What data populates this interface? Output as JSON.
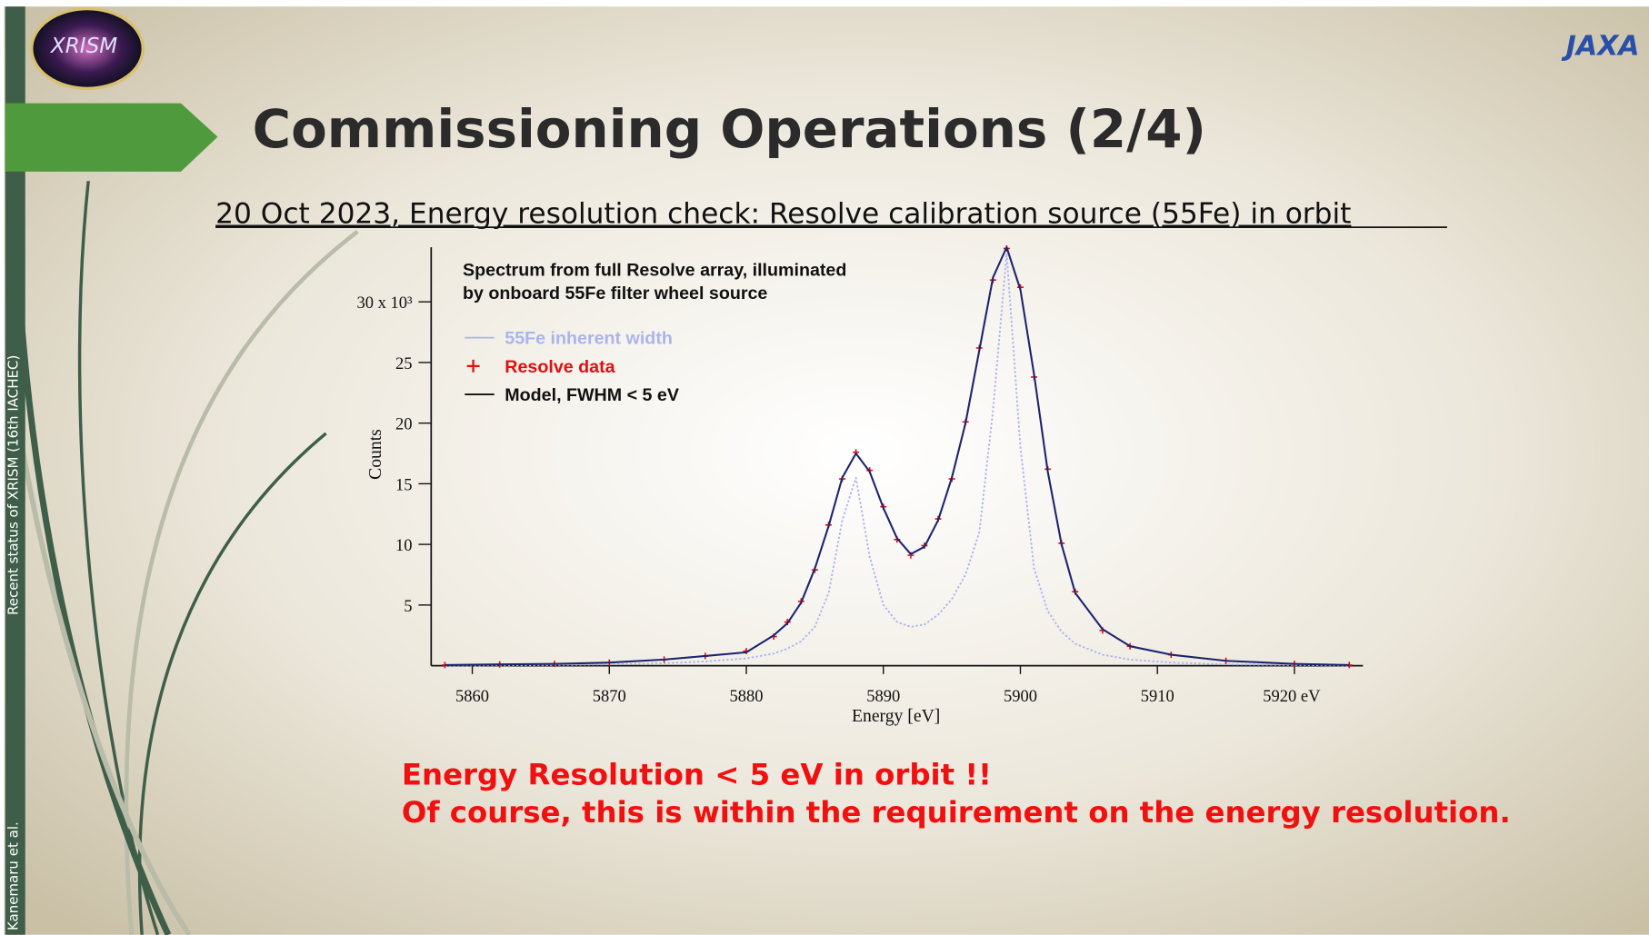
{
  "slide": {
    "logo": "XRISM",
    "agency": "JAXA",
    "sidebar_top": "Recent status of XRISM (16th IACHEC)",
    "sidebar_bottom": "Kanemaru et al.",
    "title": "Commissioning Operations (2/4)",
    "subtitle": "20 Oct 2023, Energy resolution check: Resolve calibration source (55Fe) in orbit",
    "notes": [
      "Energy Resolution < 5 eV in orbit !!",
      "Of course, this is within the requirement on the energy resolution."
    ]
  },
  "chart_data": {
    "type": "line",
    "title_lines": [
      "Spectrum from full Resolve array, illuminated",
      "by onboard 55Fe filter wheel source"
    ],
    "x_label": "Energy [eV]",
    "y_label": "Counts",
    "xlim": [
      5857,
      5925
    ],
    "ylim": [
      0,
      34.5
    ],
    "xticks": [
      5860,
      5870,
      5880,
      5890,
      5900,
      5910,
      {
        "value": 5920,
        "label": "5920 eV"
      }
    ],
    "yticks": [
      5,
      10,
      15,
      20,
      25,
      {
        "value": 30,
        "label": "30 x 10³"
      }
    ],
    "x": [
      5858,
      5862,
      5866,
      5870,
      5874,
      5877,
      5880,
      5882,
      5883,
      5884,
      5885,
      5886,
      5887,
      5888,
      5889,
      5890,
      5891,
      5892,
      5893,
      5894,
      5895,
      5896,
      5897,
      5898,
      5899,
      5900,
      5901,
      5902,
      5903,
      5904,
      5906,
      5908,
      5911,
      5915,
      5920,
      5924
    ],
    "series": [
      {
        "name": "55Fe inherent width",
        "color": "#aab4ee",
        "style": "dotted",
        "values": [
          0.02,
          0.03,
          0.05,
          0.1,
          0.2,
          0.35,
          0.6,
          1.0,
          1.4,
          2.0,
          3.2,
          6,
          12,
          15.5,
          9,
          5,
          3.6,
          3.2,
          3.4,
          4.2,
          5.5,
          7.5,
          11,
          21,
          34,
          18,
          8,
          4.5,
          2.8,
          1.8,
          0.9,
          0.5,
          0.25,
          0.1,
          0.05,
          0.02
        ]
      },
      {
        "name": "Resolve data",
        "color": "#e01010",
        "style": "plus",
        "values": [
          0.05,
          0.1,
          0.15,
          0.25,
          0.5,
          0.8,
          1.2,
          2.4,
          3.6,
          5.3,
          7.9,
          11.6,
          15.4,
          17.6,
          16.1,
          13.1,
          10.4,
          9.1,
          9.9,
          12.1,
          15.4,
          20.1,
          26.2,
          31.8,
          34.4,
          31.2,
          23.8,
          16.2,
          10.1,
          6.1,
          2.9,
          1.6,
          0.9,
          0.4,
          0.15,
          0.05
        ]
      },
      {
        "name": "Model, FWHM < 5 eV",
        "color": "#1c2470",
        "style": "line",
        "values": [
          0.05,
          0.1,
          0.15,
          0.25,
          0.5,
          0.8,
          1.1,
          2.5,
          3.5,
          5.2,
          8,
          11.5,
          15.5,
          17.5,
          16,
          13,
          10.5,
          9.2,
          9.8,
          12,
          15.5,
          20,
          26,
          32,
          34.5,
          31,
          24,
          16,
          10,
          6,
          3,
          1.6,
          0.9,
          0.4,
          0.15,
          0.05
        ]
      }
    ]
  }
}
